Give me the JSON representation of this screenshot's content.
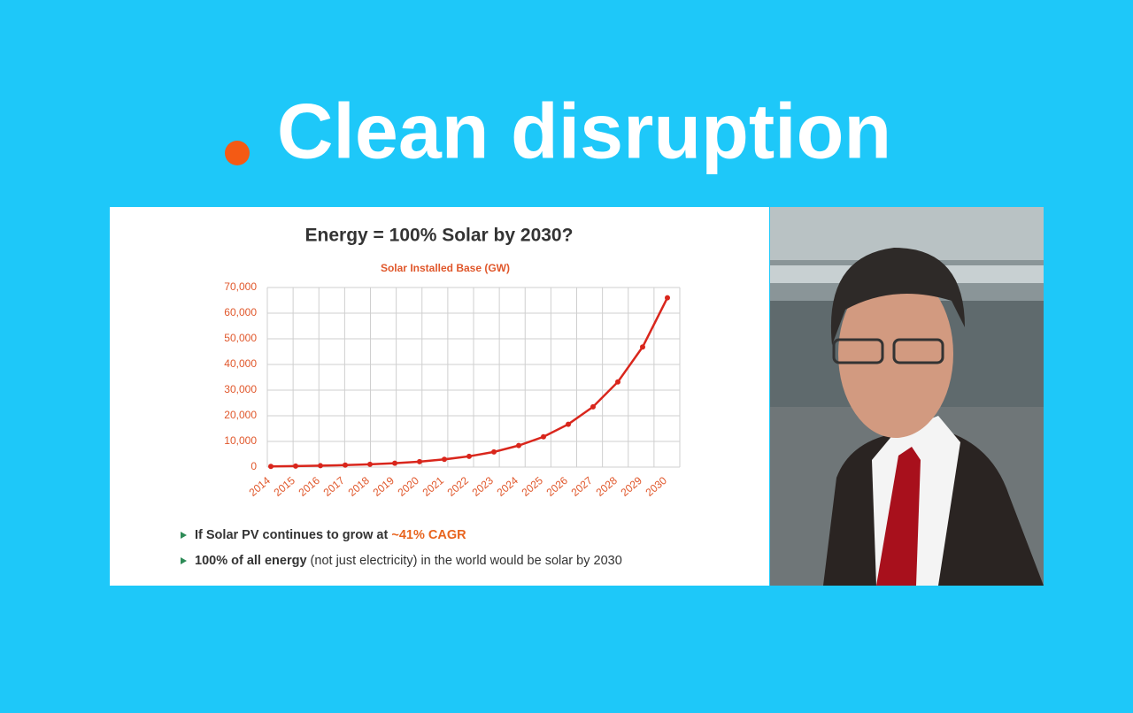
{
  "slide": {
    "title": "Clean disruption",
    "bullets": [
      [
        {
          "text": "If Solar PV continues to grow at ",
          "bold": true,
          "color": "#333333"
        },
        {
          "text": "~41% CAGR",
          "bold": true,
          "color": "#e8641e"
        }
      ],
      [
        {
          "text": "100% of all energy",
          "bold": true,
          "color": "#333333"
        },
        {
          "text": " (not just electricity) in the world would be solar by 2030",
          "bold": false,
          "color": "#333333"
        }
      ]
    ]
  },
  "chart_data": {
    "type": "line",
    "title": "Energy = 100% Solar by 2030?",
    "subtitle": "Solar Installed Base (GW)",
    "categories": [
      "2014",
      "2015",
      "2016",
      "2017",
      "2018",
      "2019",
      "2020",
      "2021",
      "2022",
      "2023",
      "2024",
      "2025",
      "2026",
      "2027",
      "2028",
      "2029",
      "2030"
    ],
    "values": [
      270,
      380,
      540,
      760,
      1070,
      1510,
      2130,
      3000,
      4200,
      5900,
      8400,
      11800,
      16700,
      23500,
      33200,
      46800,
      66000
    ],
    "color": "#d9261c",
    "ylim": [
      0,
      70000
    ],
    "yticks": [
      0,
      {
        "value": 10000,
        "label": "10,000"
      },
      {
        "value": 20000,
        "label": "20,000"
      },
      {
        "value": 30000,
        "label": "30,000"
      },
      {
        "value": 40000,
        "label": "40,000"
      },
      {
        "value": 50000,
        "label": "50,000"
      },
      {
        "value": 60000,
        "label": "60,000"
      },
      {
        "value": 70000,
        "label": "70,000"
      }
    ],
    "grid": true
  }
}
